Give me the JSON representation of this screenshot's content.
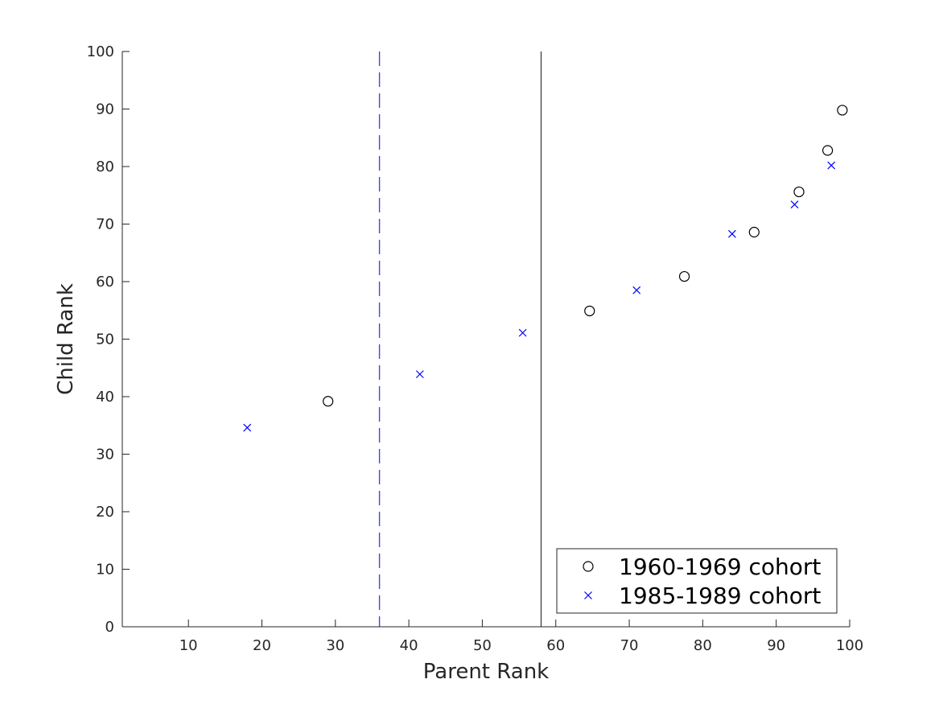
{
  "chart_data": {
    "type": "scatter",
    "xlabel": "Parent Rank",
    "ylabel": "Child Rank",
    "xlim": [
      1,
      100
    ],
    "ylim": [
      0,
      100
    ],
    "xticks": [
      10,
      20,
      30,
      40,
      50,
      60,
      70,
      80,
      90,
      100
    ],
    "yticks": [
      0,
      10,
      20,
      30,
      40,
      50,
      60,
      70,
      80,
      90,
      100
    ],
    "grid": false,
    "legend_position": "bottom-right",
    "series": [
      {
        "name": "1960-1969 cohort",
        "marker": "circle",
        "color": "#000000",
        "points": [
          [
            29,
            39.2
          ],
          [
            64.6,
            54.9
          ],
          [
            77.5,
            60.9
          ],
          [
            87,
            68.6
          ],
          [
            93.1,
            75.6
          ],
          [
            97,
            82.8
          ],
          [
            99,
            89.8
          ]
        ]
      },
      {
        "name": "1985-1989 cohort",
        "marker": "x",
        "color": "#0000ff",
        "points": [
          [
            18,
            34.6
          ],
          [
            41.5,
            43.9
          ],
          [
            55.5,
            51.1
          ],
          [
            71,
            58.5
          ],
          [
            84,
            68.3
          ],
          [
            92.5,
            73.4
          ],
          [
            97.5,
            80.2
          ]
        ]
      }
    ],
    "reference_lines": [
      {
        "orientation": "vertical",
        "x": 36,
        "style": "dashed",
        "color": "#4444dd"
      },
      {
        "orientation": "vertical",
        "x": 58,
        "style": "solid",
        "color": "#333333"
      }
    ]
  }
}
